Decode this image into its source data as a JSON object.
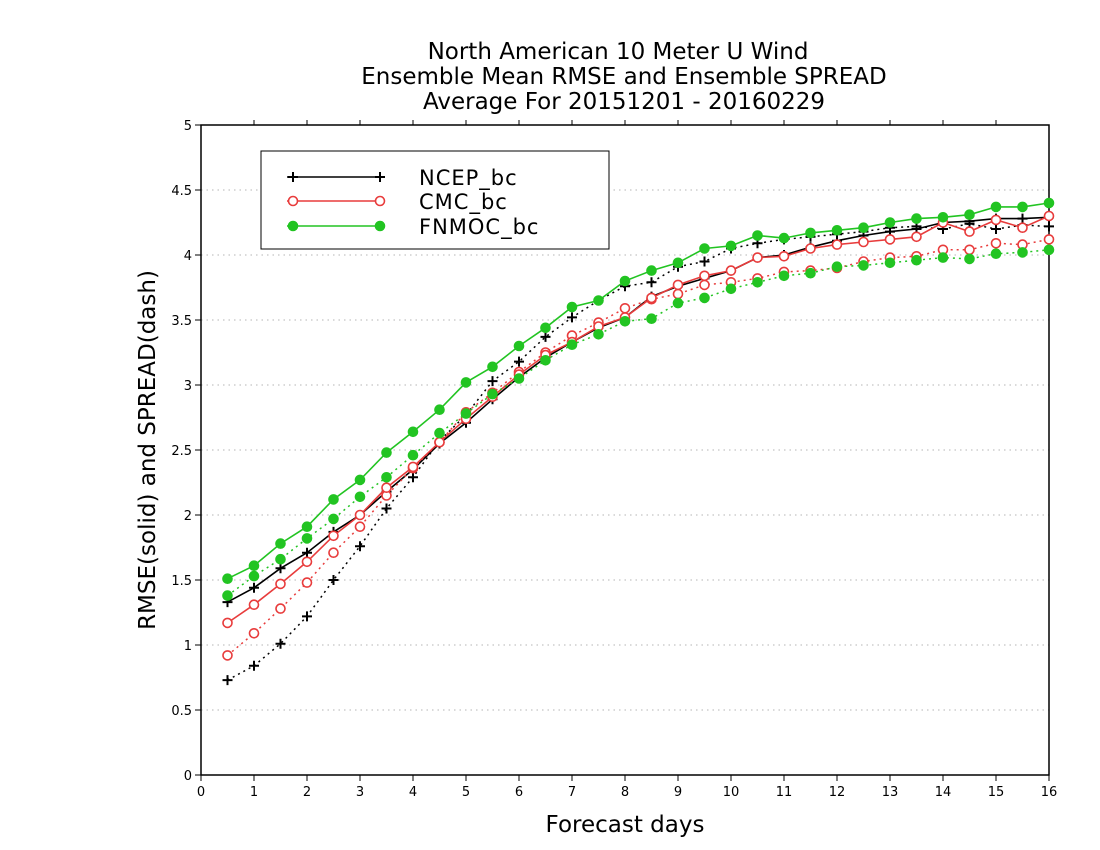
{
  "chart_data": {
    "type": "line",
    "title_lines": [
      "North American 10 Meter U Wind",
      "Ensemble Mean RMSE and Ensemble SPREAD",
      "Average For 20151201 - 20160229"
    ],
    "xlabel": "Forecast days",
    "ylabel": "RMSE(solid) and SPREAD(dash)",
    "xlim": [
      0,
      16
    ],
    "ylim": [
      0,
      5
    ],
    "x_ticks": [
      "0",
      "1",
      "2",
      "3",
      "4",
      "5",
      "6",
      "7",
      "8",
      "9",
      "10",
      "11",
      "12",
      "13",
      "14",
      "15",
      "16"
    ],
    "y_ticks": [
      "0",
      "0.5",
      "1",
      "1.5",
      "2",
      "2.5",
      "3",
      "3.5",
      "4",
      "4.5",
      "5"
    ],
    "grid": "horizontal dotted",
    "legend_position": "top-left",
    "x": [
      0.5,
      1,
      1.5,
      2,
      2.5,
      3,
      3.5,
      4,
      4.5,
      5,
      5.5,
      6,
      6.5,
      7,
      7.5,
      8,
      8.5,
      9,
      9.5,
      10,
      10.5,
      11,
      11.5,
      12,
      12.5,
      13,
      13.5,
      14,
      14.5,
      15,
      15.5,
      16
    ],
    "series": [
      {
        "name": "NCEP_bc",
        "color": "#000000",
        "marker": "plus",
        "rmse": [
          1.33,
          1.44,
          1.59,
          1.71,
          1.87,
          2.0,
          2.18,
          2.35,
          2.55,
          2.71,
          2.89,
          3.06,
          3.21,
          3.33,
          3.44,
          3.52,
          3.68,
          3.76,
          3.82,
          3.88,
          3.98,
          4.0,
          4.06,
          4.11,
          4.15,
          4.18,
          4.2,
          4.25,
          4.26,
          4.28,
          4.28,
          4.29
        ],
        "spread": [
          0.73,
          0.84,
          1.01,
          1.22,
          1.5,
          1.76,
          2.05,
          2.29,
          2.57,
          2.77,
          3.03,
          3.18,
          3.37,
          3.52,
          3.65,
          3.76,
          3.79,
          3.91,
          3.95,
          4.05,
          4.09,
          4.12,
          4.14,
          4.16,
          4.18,
          4.21,
          4.22,
          4.2,
          4.24,
          4.2,
          4.23,
          4.22
        ]
      },
      {
        "name": "CMC_bc",
        "color": "#e83c3c",
        "marker": "open-circle",
        "rmse": [
          1.17,
          1.31,
          1.47,
          1.64,
          1.84,
          2.0,
          2.21,
          2.37,
          2.56,
          2.74,
          2.91,
          3.08,
          3.23,
          3.33,
          3.45,
          3.52,
          3.67,
          3.77,
          3.84,
          3.88,
          3.98,
          3.99,
          4.05,
          4.08,
          4.1,
          4.12,
          4.14,
          4.25,
          4.18,
          4.27,
          4.21,
          4.3
        ],
        "spread": [
          0.92,
          1.09,
          1.28,
          1.48,
          1.71,
          1.91,
          2.15,
          2.36,
          2.56,
          2.79,
          2.94,
          3.1,
          3.25,
          3.38,
          3.48,
          3.59,
          3.66,
          3.7,
          3.77,
          3.79,
          3.82,
          3.87,
          3.88,
          3.9,
          3.95,
          3.98,
          3.99,
          4.04,
          4.04,
          4.09,
          4.08,
          4.12
        ]
      },
      {
        "name": "FNMOC_bc",
        "color": "#22c422",
        "marker": "filled-circle",
        "rmse": [
          1.51,
          1.61,
          1.78,
          1.91,
          2.12,
          2.27,
          2.48,
          2.64,
          2.81,
          3.02,
          3.14,
          3.3,
          3.44,
          3.6,
          3.65,
          3.8,
          3.88,
          3.94,
          4.05,
          4.07,
          4.15,
          4.13,
          4.17,
          4.19,
          4.21,
          4.25,
          4.28,
          4.29,
          4.31,
          4.37,
          4.37,
          4.4
        ],
        "spread": [
          1.38,
          1.53,
          1.66,
          1.82,
          1.97,
          2.14,
          2.29,
          2.46,
          2.63,
          2.78,
          2.93,
          3.05,
          3.19,
          3.31,
          3.39,
          3.49,
          3.51,
          3.63,
          3.67,
          3.74,
          3.79,
          3.84,
          3.86,
          3.91,
          3.92,
          3.94,
          3.96,
          3.98,
          3.97,
          4.01,
          4.02,
          4.04
        ]
      }
    ]
  }
}
